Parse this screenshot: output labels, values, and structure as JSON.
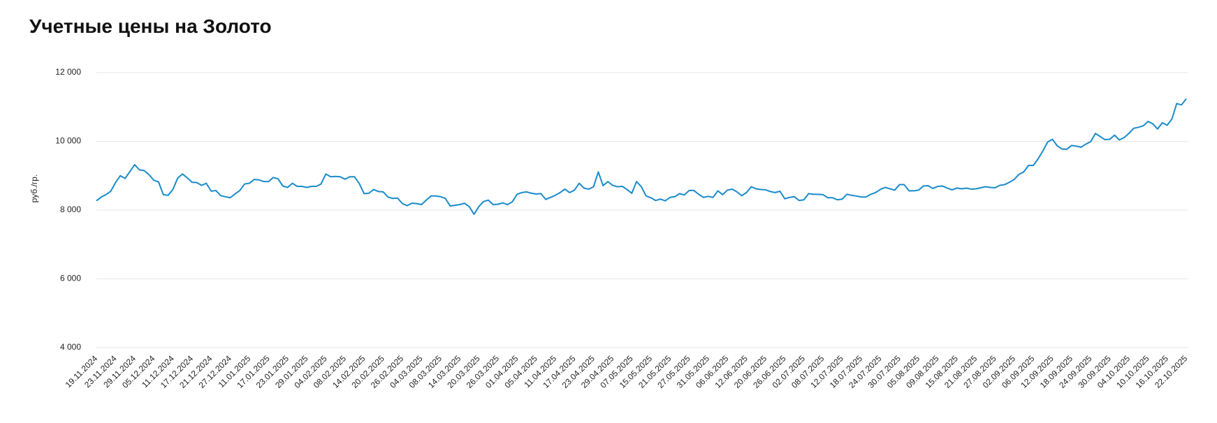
{
  "chart_data": {
    "type": "line",
    "title": "Учетные цены на Золото",
    "y_label": "руб./гр.",
    "categories": [
      "19.11.2024",
      null,
      null,
      null,
      "23.11.2024",
      null,
      null,
      null,
      "29.11.2024",
      null,
      null,
      null,
      "05.12.2024",
      null,
      null,
      null,
      "11.12.2024",
      null,
      null,
      null,
      "17.12.2024",
      null,
      null,
      null,
      "21.12.2024",
      null,
      null,
      null,
      "27.12.2024",
      null,
      null,
      null,
      "11.01.2025",
      null,
      null,
      null,
      "17.01.2025",
      null,
      null,
      null,
      "23.01.2025",
      null,
      null,
      null,
      "29.01.2025",
      null,
      null,
      null,
      "04.02.2025",
      null,
      null,
      null,
      "08.02.2025",
      null,
      null,
      null,
      "14.02.2025",
      null,
      null,
      null,
      "20.02.2025",
      null,
      null,
      null,
      "26.02.2025",
      null,
      null,
      null,
      "04.03.2025",
      null,
      null,
      null,
      "08.03.2025",
      null,
      null,
      null,
      "14.03.2025",
      null,
      null,
      null,
      "20.03.2025",
      null,
      null,
      null,
      "26.03.2025",
      null,
      null,
      null,
      "01.04.2025",
      null,
      null,
      null,
      "05.04.2025",
      null,
      null,
      null,
      "11.04.2025",
      null,
      null,
      null,
      "17.04.2025",
      null,
      null,
      null,
      "23.04.2025",
      null,
      null,
      null,
      "29.04.2025",
      null,
      null,
      null,
      "07.05.2025",
      null,
      null,
      null,
      "15.05.2025",
      null,
      null,
      null,
      "21.05.2025",
      null,
      null,
      null,
      "27.05.2025",
      null,
      null,
      null,
      "31.05.2025",
      null,
      null,
      null,
      "06.06.2025",
      null,
      null,
      null,
      "12.06.2025",
      null,
      null,
      null,
      "20.06.2025",
      null,
      null,
      null,
      "26.06.2025",
      null,
      null,
      null,
      "02.07.2025",
      null,
      null,
      null,
      "08.07.2025",
      null,
      null,
      null,
      "12.07.2025",
      null,
      null,
      null,
      "18.07.2025",
      null,
      null,
      null,
      "24.07.2025",
      null,
      null,
      null,
      "30.07.2025",
      null,
      null,
      null,
      "05.08.2025",
      null,
      null,
      null,
      "09.08.2025",
      null,
      null,
      null,
      "15.08.2025",
      null,
      null,
      null,
      "21.08.2025",
      null,
      null,
      null,
      "27.08.2025",
      null,
      null,
      null,
      "02.09.2025",
      null,
      null,
      null,
      "06.09.2025",
      null,
      null,
      null,
      "12.09.2025",
      null,
      null,
      null,
      "18.09.2025",
      null,
      null,
      null,
      "24.09.2025",
      null,
      null,
      null,
      "30.09.2025",
      null,
      null,
      null,
      "04.10.2025",
      null,
      null,
      null,
      "10.10.2025",
      null,
      null,
      null,
      "16.10.2025",
      null,
      null,
      null,
      "22.10.2025"
    ],
    "values": [
      8270,
      8380,
      8450,
      8550,
      8800,
      9000,
      8920,
      9120,
      9320,
      9170,
      9150,
      9030,
      8870,
      8820,
      8450,
      8430,
      8600,
      8930,
      9050,
      8940,
      8810,
      8800,
      8720,
      8780,
      8550,
      8570,
      8420,
      8390,
      8360,
      8470,
      8570,
      8760,
      8780,
      8890,
      8880,
      8830,
      8830,
      8950,
      8910,
      8700,
      8660,
      8780,
      8690,
      8690,
      8660,
      8690,
      8690,
      8760,
      9050,
      8970,
      8980,
      8970,
      8900,
      8970,
      8970,
      8770,
      8480,
      8490,
      8600,
      8540,
      8530,
      8380,
      8340,
      8350,
      8190,
      8130,
      8200,
      8190,
      8160,
      8290,
      8410,
      8410,
      8390,
      8340,
      8120,
      8140,
      8160,
      8200,
      8100,
      7880,
      8100,
      8250,
      8290,
      8160,
      8170,
      8210,
      8160,
      8240,
      8460,
      8510,
      8530,
      8490,
      8470,
      8480,
      8310,
      8370,
      8430,
      8510,
      8610,
      8510,
      8580,
      8780,
      8640,
      8610,
      8680,
      9110,
      8710,
      8830,
      8720,
      8680,
      8690,
      8600,
      8490,
      8830,
      8680,
      8410,
      8360,
      8280,
      8320,
      8270,
      8370,
      8390,
      8480,
      8440,
      8570,
      8570,
      8460,
      8370,
      8400,
      8370,
      8560,
      8450,
      8580,
      8610,
      8530,
      8420,
      8510,
      8680,
      8620,
      8600,
      8590,
      8540,
      8510,
      8550,
      8330,
      8370,
      8390,
      8280,
      8300,
      8480,
      8460,
      8460,
      8450,
      8360,
      8360,
      8300,
      8320,
      8460,
      8430,
      8410,
      8380,
      8380,
      8460,
      8510,
      8600,
      8660,
      8620,
      8580,
      8740,
      8740,
      8560,
      8560,
      8580,
      8700,
      8710,
      8630,
      8690,
      8700,
      8640,
      8590,
      8640,
      8620,
      8640,
      8610,
      8620,
      8650,
      8680,
      8660,
      8650,
      8720,
      8740,
      8810,
      8890,
      9040,
      9110,
      9300,
      9300,
      9490,
      9720,
      9980,
      10060,
      9870,
      9780,
      9770,
      9880,
      9860,
      9830,
      9920,
      9990,
      10230,
      10140,
      10050,
      10060,
      10180,
      10040,
      10110,
      10230,
      10380,
      10410,
      10450,
      10580,
      10510,
      10360,
      10540,
      10470,
      10650,
      11100,
      11060,
      11240
    ],
    "color": "#1a8bcb",
    "ylim": [
      4000,
      12000
    ],
    "yticks": [
      {
        "value": 4000,
        "label": "4 000"
      },
      {
        "value": 6000,
        "label": "6 000"
      },
      {
        "value": 8000,
        "label": "8 000"
      },
      {
        "value": 10000,
        "label": "10 000"
      },
      {
        "value": 12000,
        "label": "12 000"
      }
    ],
    "grid": true
  }
}
